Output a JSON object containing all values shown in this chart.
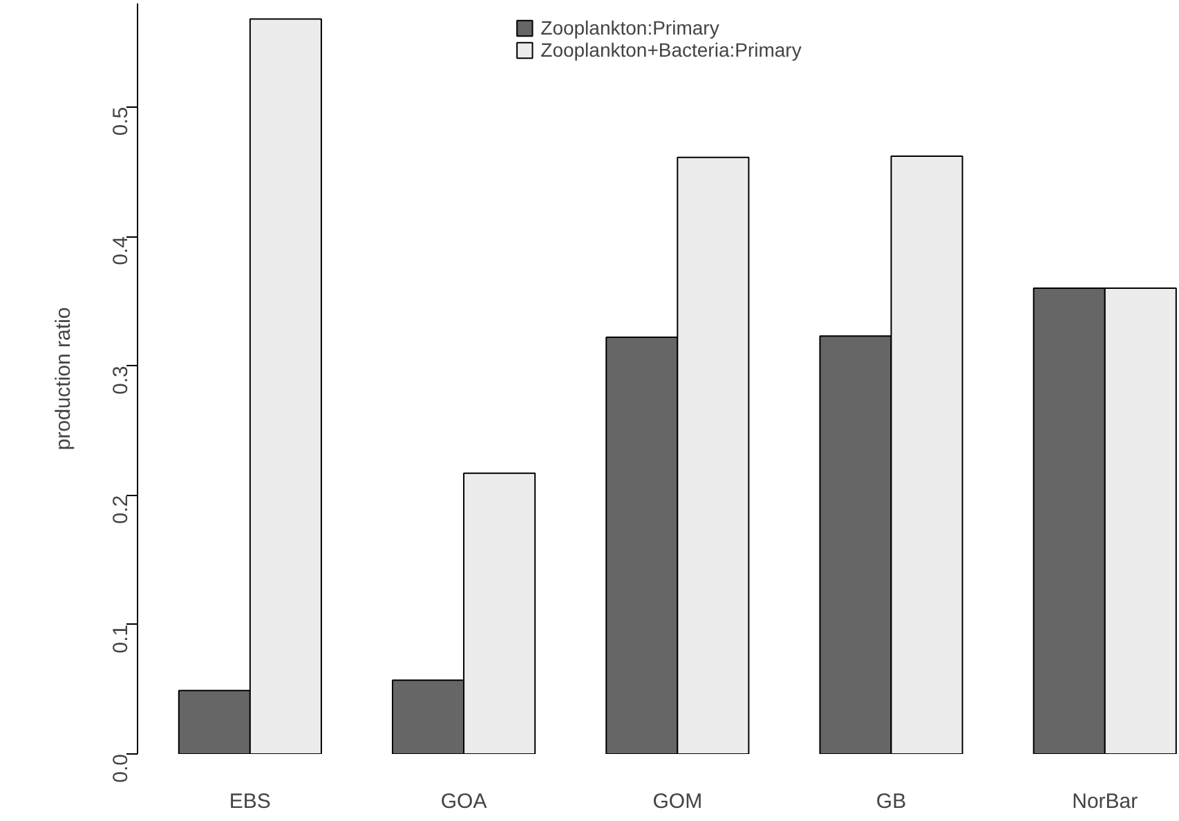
{
  "chart_data": {
    "type": "bar",
    "ylabel": "production ratio",
    "categories": [
      "EBS",
      "GOA",
      "GOM",
      "GB",
      "NorBar"
    ],
    "series": [
      {
        "name": "Zooplankton:Primary",
        "color": "#666666",
        "values": [
          0.049,
          0.057,
          0.322,
          0.323,
          0.36
        ]
      },
      {
        "name": "Zooplankton+Bacteria:Primary",
        "color": "#ebeceb",
        "values": [
          0.568,
          0.217,
          0.461,
          0.462,
          0.36
        ]
      }
    ],
    "ylim": [
      0,
      0.58
    ],
    "yticks": [
      {
        "value": 0,
        "label": "0.0"
      },
      {
        "value": 0.1,
        "label": "0.1"
      },
      {
        "value": 0.2,
        "label": "0.2"
      },
      {
        "value": 0.3,
        "label": "0.3"
      },
      {
        "value": 0.4,
        "label": "0.4"
      },
      {
        "value": 0.5,
        "label": "0.5"
      }
    ],
    "grid": false,
    "legend": "top"
  }
}
